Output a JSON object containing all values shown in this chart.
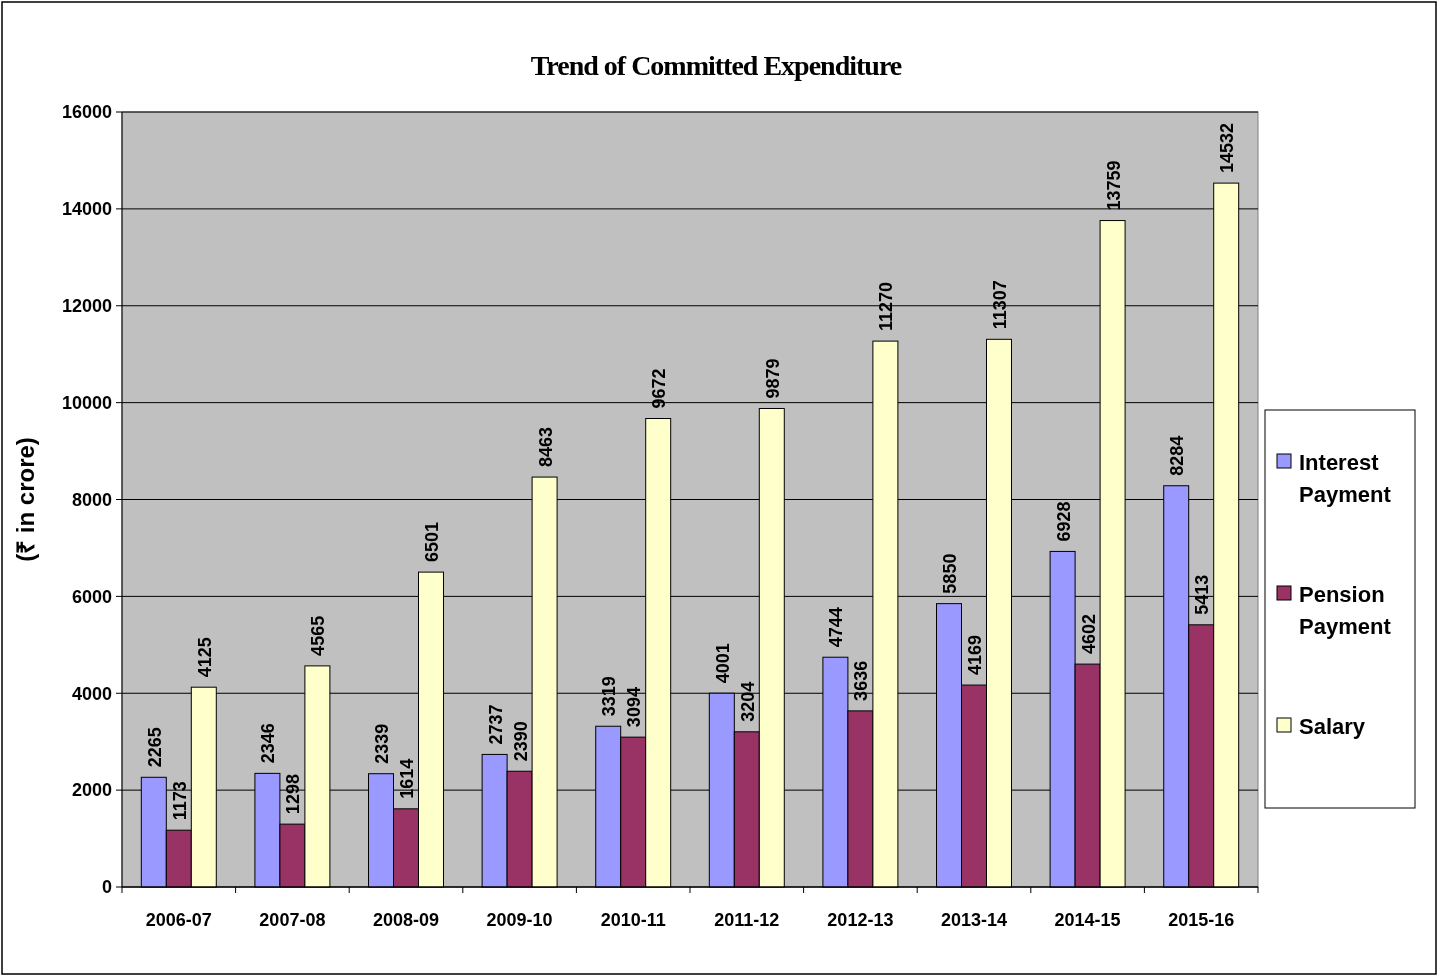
{
  "chart_data": {
    "type": "bar",
    "title": "Trend of Committed Expenditure",
    "ylabel": "(₹ in crore)",
    "categories": [
      "2006-07",
      "2007-08",
      "2008-09",
      "2009-10",
      "2010-11",
      "2011-12",
      "2012-13",
      "2013-14",
      "2014-15",
      "2015-16"
    ],
    "series": [
      {
        "name": "Interest Payment",
        "color": "#9999ff",
        "values": [
          2265,
          2346,
          2339,
          2737,
          3319,
          4001,
          4744,
          5850,
          6928,
          8284
        ]
      },
      {
        "name": "Pension Payment",
        "color": "#993366",
        "values": [
          1173,
          1298,
          1614,
          2390,
          3094,
          3204,
          3636,
          4169,
          4602,
          5413
        ]
      },
      {
        "name": "Salary",
        "color": "#ffffcc",
        "values": [
          4125,
          4565,
          6501,
          8463,
          9672,
          9879,
          11270,
          11307,
          13759,
          14532
        ]
      }
    ],
    "ylim": [
      0,
      16000
    ],
    "yticks": [
      0,
      2000,
      4000,
      6000,
      8000,
      10000,
      12000,
      14000,
      16000
    ],
    "grid": "y",
    "legend": "right",
    "data_labels": true
  }
}
